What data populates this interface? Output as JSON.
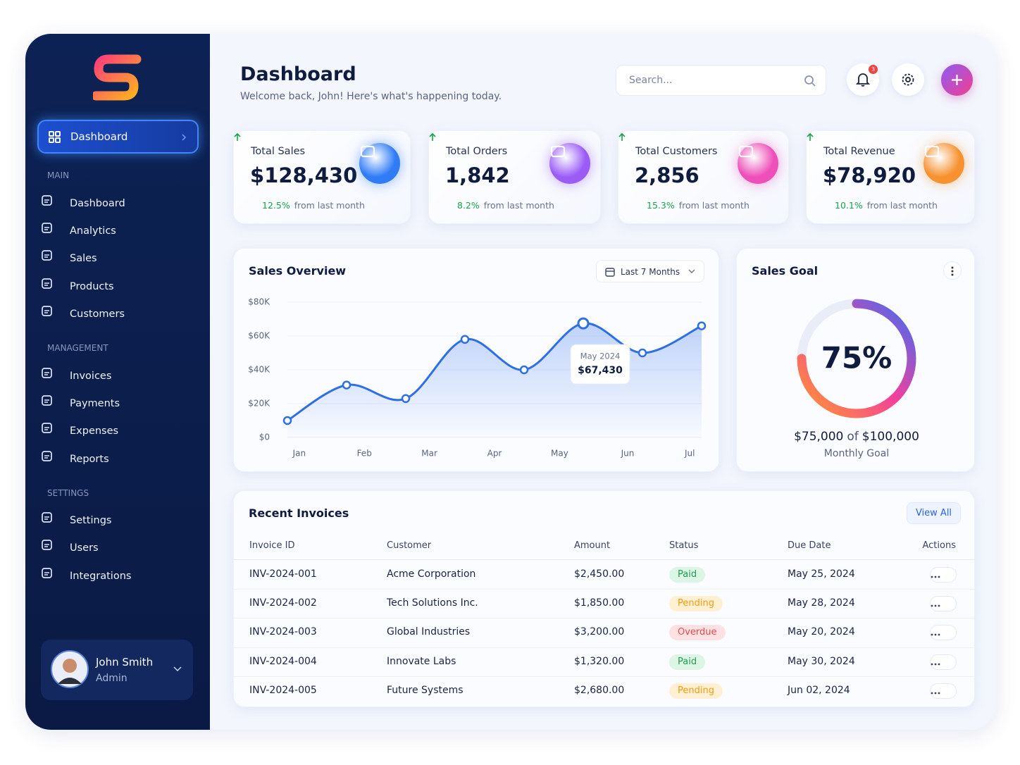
{
  "sidebar": {
    "active": "Dashboard",
    "sections": [
      {
        "label": "MAIN",
        "items": [
          "Dashboard",
          "Analytics",
          "Sales",
          "Products",
          "Customers"
        ]
      },
      {
        "label": "MANAGEMENT",
        "items": [
          "Invoices",
          "Payments",
          "Expenses",
          "Reports"
        ]
      },
      {
        "label": "SETTINGS",
        "items": [
          "Settings",
          "Users",
          "Integrations"
        ]
      }
    ]
  },
  "user": {
    "name": "John Smith",
    "role": "Admin"
  },
  "header": {
    "title": "Dashboard",
    "subtitle": "Welcome back, John! Here's what's happening today.",
    "search_placeholder": "Search...",
    "notifications": 3
  },
  "stats": [
    {
      "title": "Total Sales",
      "value": "$128,430",
      "change": "12.5%",
      "note": "from last month",
      "color": "#2f7cf6"
    },
    {
      "title": "Total Orders",
      "value": "1,842",
      "change": "8.2%",
      "note": "from last month",
      "color": "#9b5cf6"
    },
    {
      "title": "Total Customers",
      "value": "2,856",
      "change": "15.3%",
      "note": "from last month",
      "color": "#ee4fb8"
    },
    {
      "title": "Total Revenue",
      "value": "$78,920",
      "change": "10.1%",
      "note": "from last month",
      "color": "#f7922f"
    }
  ],
  "sales_overview": {
    "type": "line",
    "title": "Sales Overview",
    "range": "Last 7 Months",
    "x": [
      0,
      1,
      2,
      3,
      4,
      5,
      6,
      7
    ],
    "xlim": [
      0,
      7
    ],
    "xticks": [
      {
        "value": 0.2,
        "label": "Jan"
      },
      {
        "value": 1.3,
        "label": "Feb"
      },
      {
        "value": 2.4,
        "label": "Mar"
      },
      {
        "value": 3.5,
        "label": "Apr"
      },
      {
        "value": 4.6,
        "label": "May"
      },
      {
        "value": 5.75,
        "label": "Jun"
      },
      {
        "value": 6.8,
        "label": "Jul"
      }
    ],
    "values": [
      10000,
      31000,
      23000,
      58000,
      40000,
      67430,
      50000,
      66000
    ],
    "ylim": [
      0,
      80000
    ],
    "yticks": [
      {
        "value": 0,
        "label": "$0"
      },
      {
        "value": 20000,
        "label": "$20K"
      },
      {
        "value": 40000,
        "label": "$40K"
      },
      {
        "value": 60000,
        "label": "$60K"
      },
      {
        "value": 80000,
        "label": "$80K"
      }
    ],
    "color": "#2f6fe4",
    "tooltip": {
      "title": "May 2024",
      "value": "$67,430"
    }
  },
  "sales_goal": {
    "title": "Sales Goal",
    "percent": 75,
    "percent_label": "75%",
    "current": "$75,000",
    "joiner": "of",
    "target": "$100,000",
    "caption": "Monthly Goal"
  },
  "invoices": {
    "title": "Recent Invoices",
    "action": "View All",
    "columns": [
      "Invoice ID",
      "Customer",
      "Amount",
      "Status",
      "Due Date",
      "Actions"
    ],
    "rows": [
      {
        "id": "INV-2024-001",
        "customer": "Acme Corporation",
        "amount": "$2,450.00",
        "status": "Paid",
        "status_color": "#1f9d55",
        "status_bg": "#dcf5e4",
        "due": "May 25, 2024"
      },
      {
        "id": "INV-2024-002",
        "customer": "Tech Solutions Inc.",
        "amount": "$1,850.00",
        "status": "Pending",
        "status_color": "#f29a0e",
        "status_bg": "#fff0d4",
        "due": "May 28, 2024"
      },
      {
        "id": "INV-2024-003",
        "customer": "Global Industries",
        "amount": "$3,200.00",
        "status": "Overdue",
        "status_color": "#e5484d",
        "status_bg": "#fde1e3",
        "due": "May 20, 2024"
      },
      {
        "id": "INV-2024-004",
        "customer": "Innovate Labs",
        "amount": "$1,320.00",
        "status": "Paid",
        "status_color": "#1f9d55",
        "status_bg": "#dcf5e4",
        "due": "May 30, 2024"
      },
      {
        "id": "INV-2024-005",
        "customer": "Future Systems",
        "amount": "$2,680.00",
        "status": "Pending",
        "status_color": "#f29a0e",
        "status_bg": "#fff0d4",
        "due": "Jun 02, 2024"
      }
    ]
  }
}
